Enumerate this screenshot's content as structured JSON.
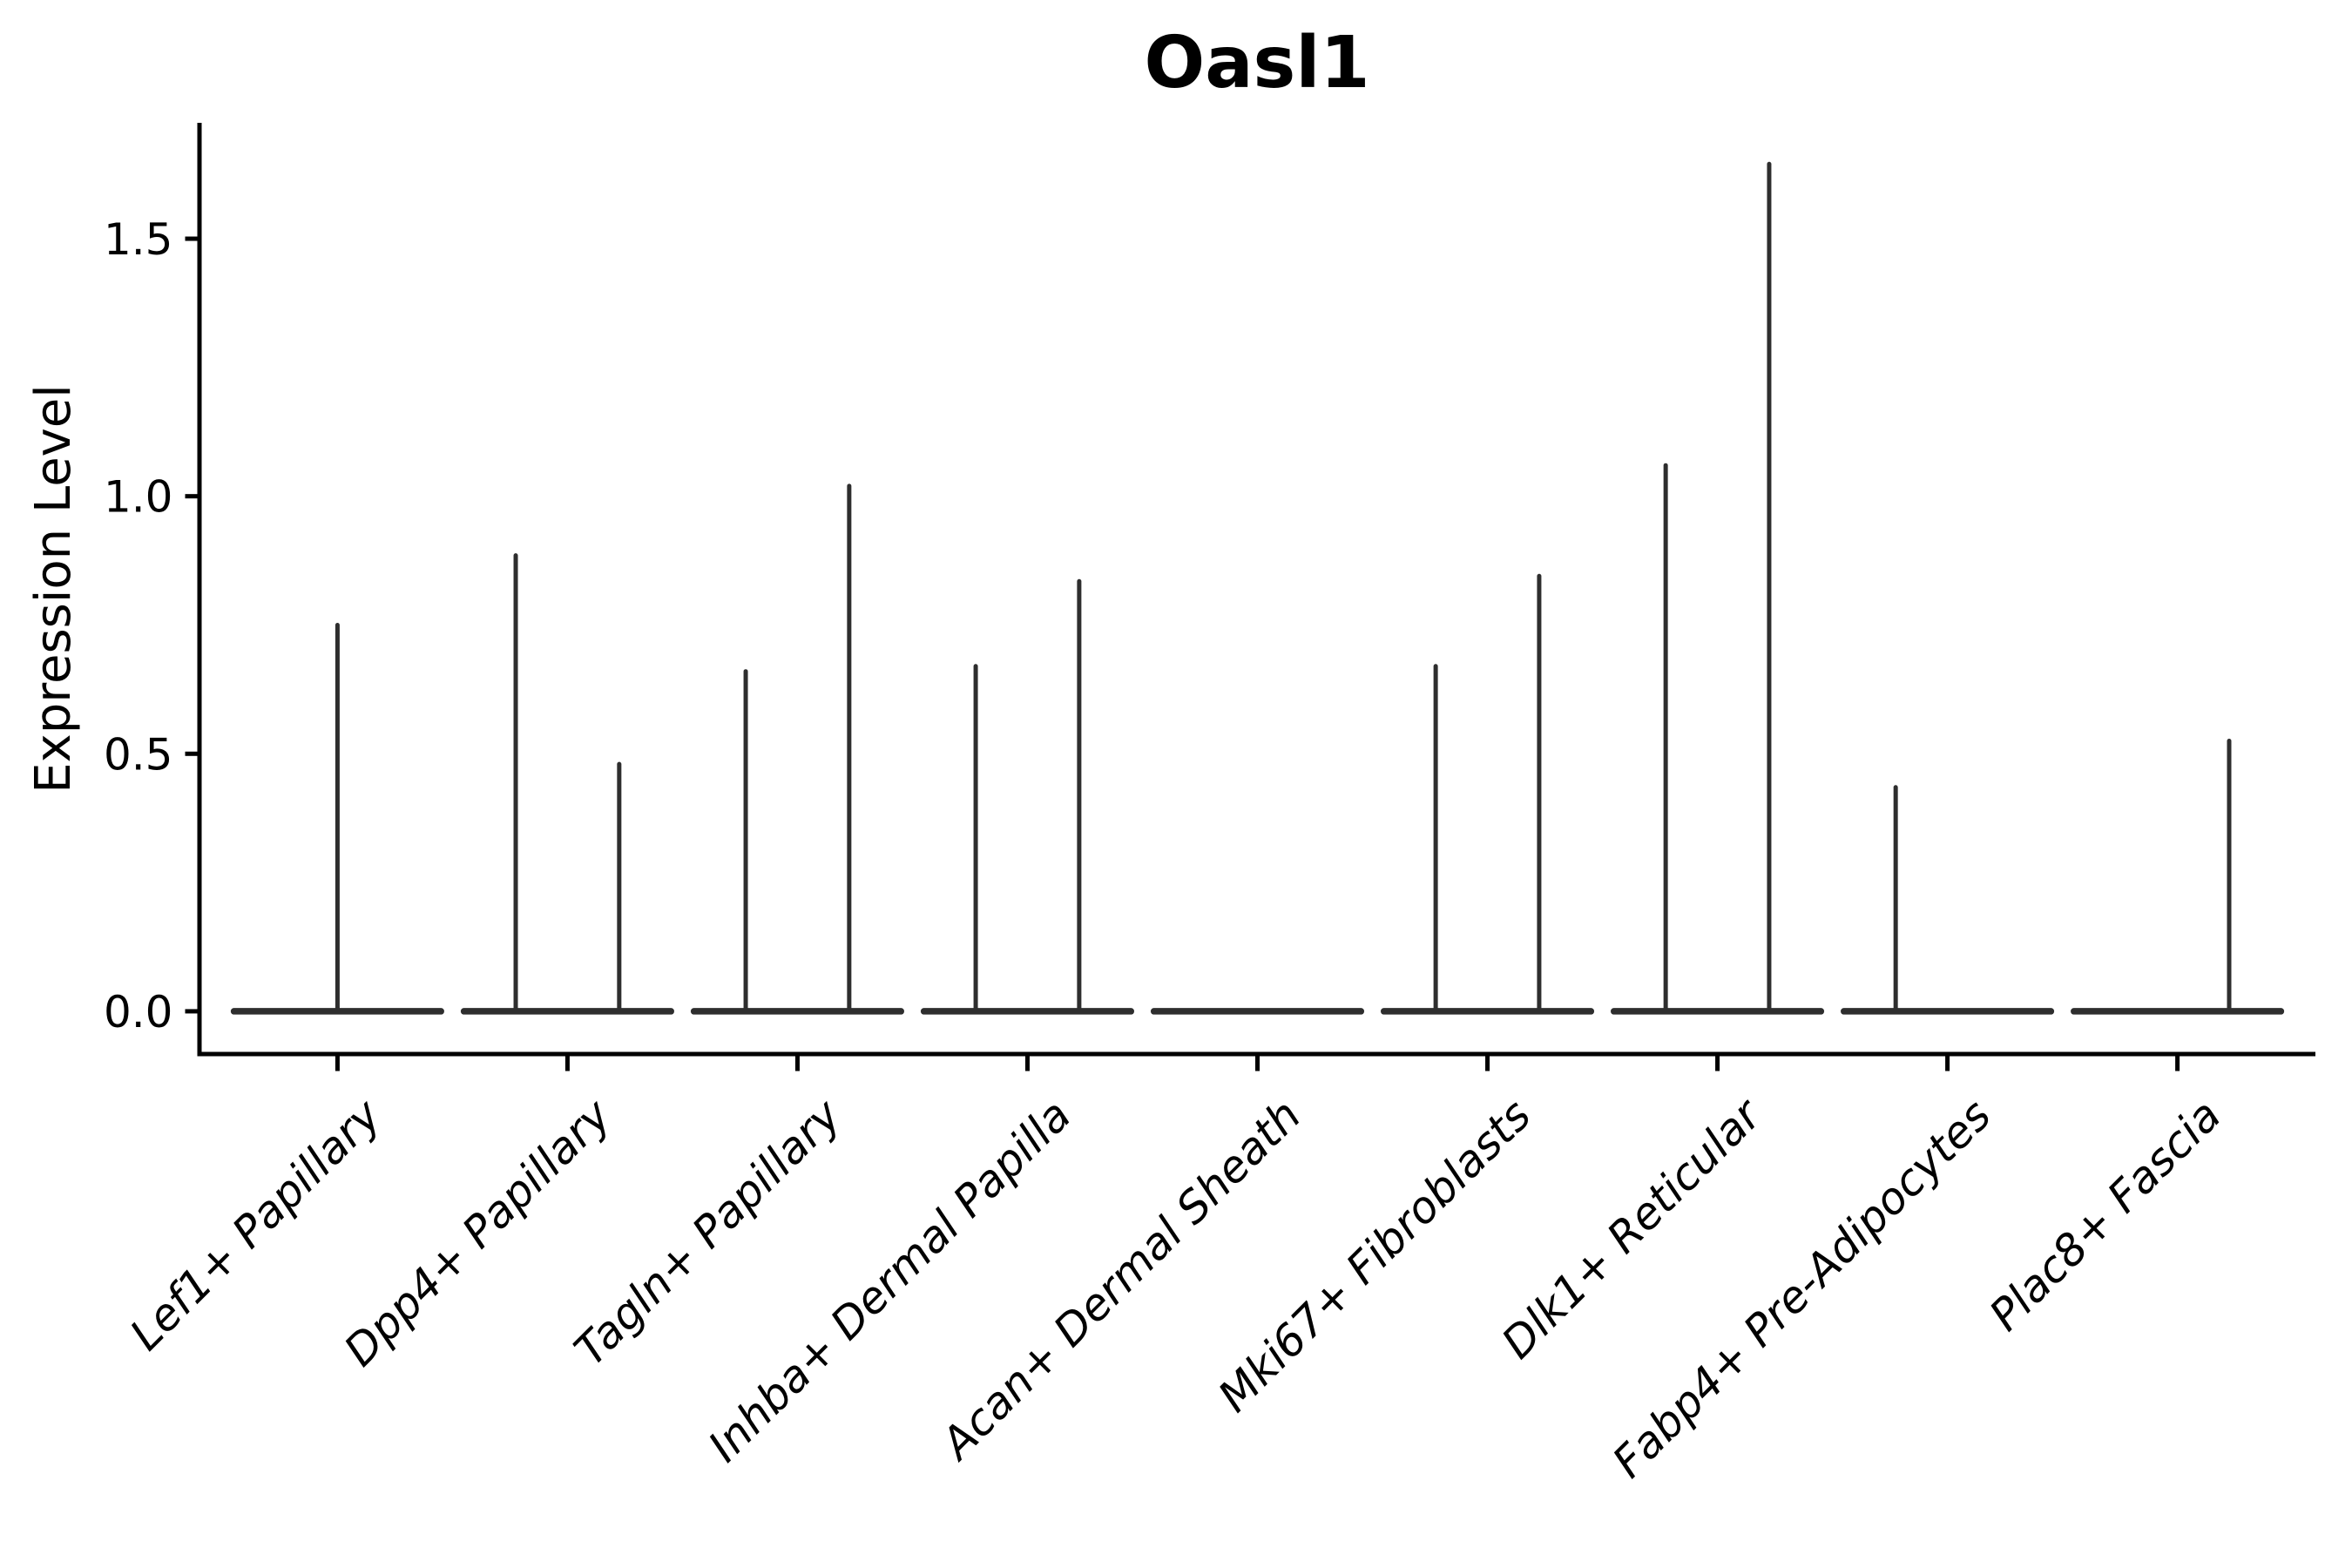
{
  "chart_data": {
    "type": "violin",
    "title": "Oasl1",
    "ylabel": "Expression Level",
    "xlabel": "",
    "grid": false,
    "legend": "none",
    "ylim": [
      -0.083,
      1.725
    ],
    "xlim_units": [
      -0.6,
      8.6
    ],
    "violin_total_width": 0.9,
    "baseline_value": 0.0,
    "yticks": [
      {
        "value": 0.0,
        "label": "0.0"
      },
      {
        "value": 0.5,
        "label": "0.5"
      },
      {
        "value": 1.0,
        "label": "1.0"
      },
      {
        "value": 1.5,
        "label": "1.5"
      }
    ],
    "categories": [
      "Lef1+ Papillary",
      "Dpp4+ Papillary",
      "Tagln+ Papillary",
      "Inhba+ Dermal Papilla",
      "Acan+ Dermal Sheath",
      "Mki67+ Fibroblasts",
      "Dlk1+ Reticular",
      "Fabp4+ Pre-Adipocytes",
      "Plac8+ Fascia"
    ],
    "violins": [
      {
        "label": "Lef1+ Papillary",
        "spikes": [
          {
            "offset": 0.0,
            "max": 0.75
          }
        ]
      },
      {
        "label": "Dpp4+ Papillary",
        "spikes": [
          {
            "offset": -0.225,
            "max": 0.885
          },
          {
            "offset": 0.225,
            "max": 0.48
          }
        ]
      },
      {
        "label": "Tagln+ Papillary",
        "spikes": [
          {
            "offset": -0.225,
            "max": 0.66
          },
          {
            "offset": 0.225,
            "max": 1.02
          }
        ]
      },
      {
        "label": "Inhba+ Dermal Papilla",
        "spikes": [
          {
            "offset": -0.225,
            "max": 0.67
          },
          {
            "offset": 0.225,
            "max": 0.835
          }
        ]
      },
      {
        "label": "Acan+ Dermal Sheath",
        "spikes": []
      },
      {
        "label": "Mki67+ Fibroblasts",
        "spikes": [
          {
            "offset": -0.225,
            "max": 0.67
          },
          {
            "offset": 0.225,
            "max": 0.845
          }
        ]
      },
      {
        "label": "Dlk1+ Reticular",
        "spikes": [
          {
            "offset": -0.225,
            "max": 1.06
          },
          {
            "offset": 0.225,
            "max": 1.645
          }
        ]
      },
      {
        "label": "Fabp4+ Pre-Adipocytes",
        "spikes": [
          {
            "offset": -0.225,
            "max": 0.435
          }
        ]
      },
      {
        "label": "Plac8+ Fascia",
        "spikes": [
          {
            "offset": 0.225,
            "max": 0.525
          }
        ]
      }
    ],
    "colors": {
      "background": "#ffffff",
      "axis": "#000000",
      "tick_text": "#000000",
      "violin_stroke": "#2e2e2e"
    }
  }
}
